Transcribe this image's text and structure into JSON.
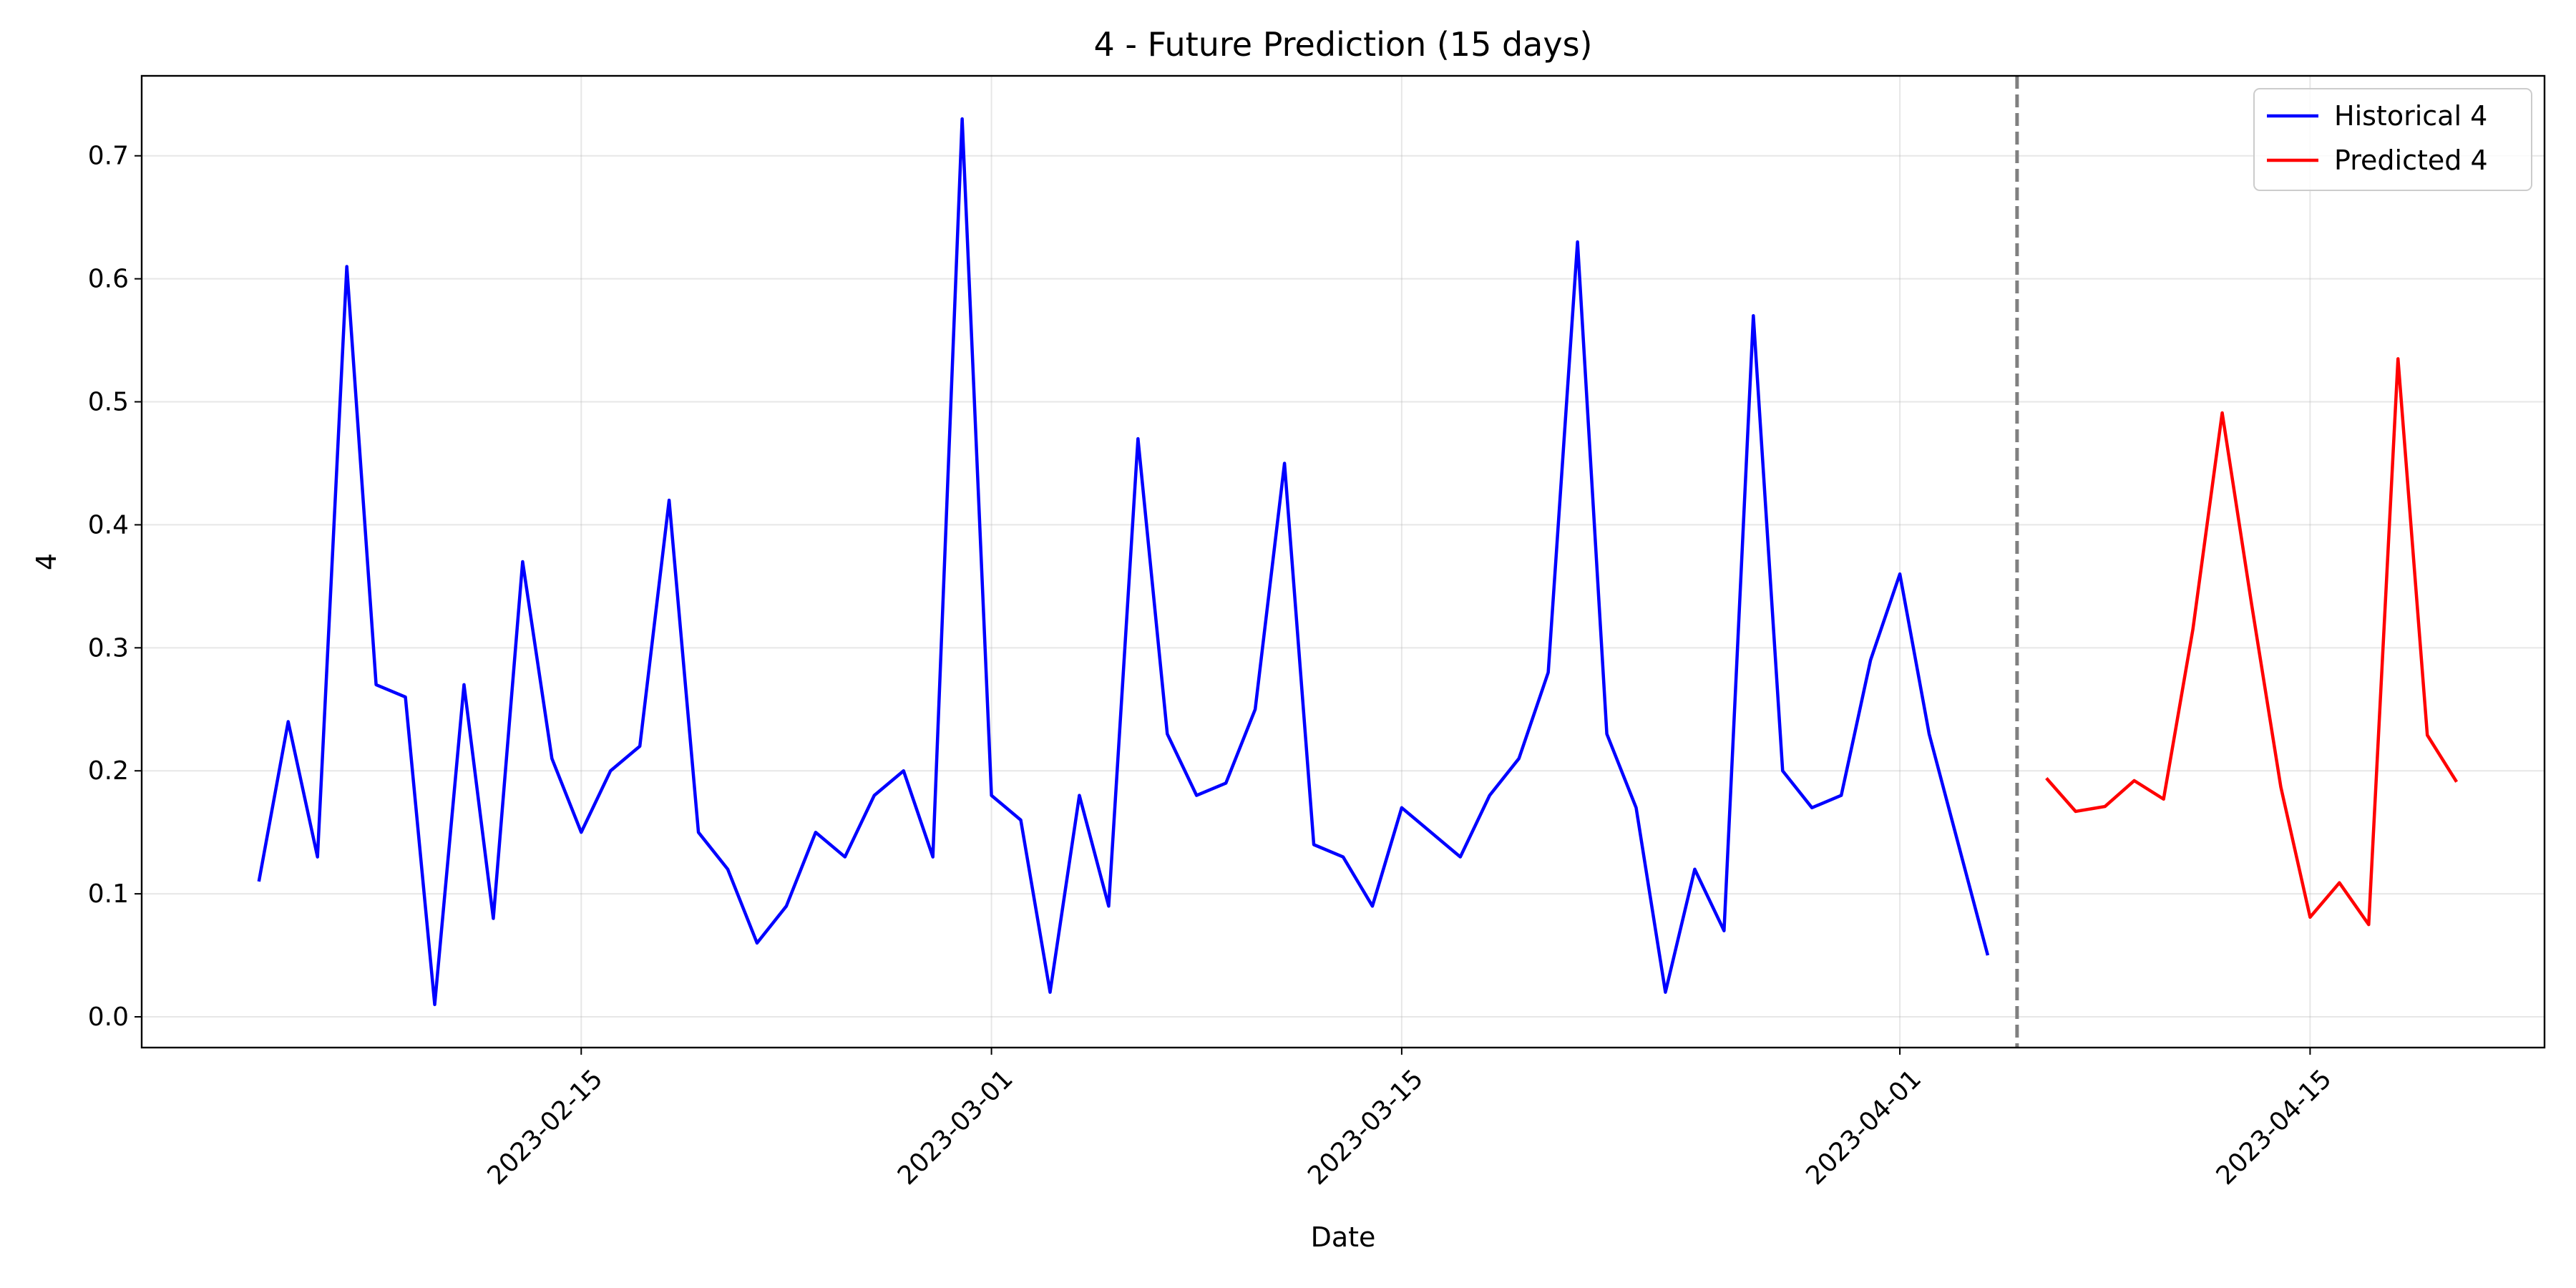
{
  "chart_data": {
    "type": "line",
    "title": "4 - Future Prediction (15 days)",
    "xlabel": "Date",
    "ylabel": "4",
    "grid": true,
    "legend_position": "top-right",
    "x_ticks": [
      "2023-02-15",
      "2023-03-01",
      "2023-03-15",
      "2023-04-01",
      "2023-04-15"
    ],
    "y_ticks": [
      "0.0",
      "0.1",
      "0.2",
      "0.3",
      "0.4",
      "0.5",
      "0.6",
      "0.7"
    ],
    "xlim": [
      "2023-01-31",
      "2023-04-23"
    ],
    "ylim": [
      -0.025,
      0.765
    ],
    "forecast_start": "2023-04-05",
    "series": [
      {
        "name": "Historical 4",
        "color": "#0000ff",
        "start_date": "2023-02-04",
        "values": [
          0.11,
          0.24,
          0.13,
          0.61,
          0.27,
          0.26,
          0.01,
          0.27,
          0.08,
          0.37,
          0.21,
          0.15,
          0.2,
          0.22,
          0.42,
          0.15,
          0.12,
          0.06,
          0.09,
          0.15,
          0.13,
          0.18,
          0.2,
          0.13,
          0.73,
          0.18,
          0.16,
          0.02,
          0.18,
          0.09,
          0.47,
          0.23,
          0.18,
          0.19,
          0.25,
          0.45,
          0.14,
          0.13,
          0.09,
          0.17,
          0.15,
          0.13,
          0.18,
          0.21,
          0.28,
          0.63,
          0.23,
          0.17,
          0.02,
          0.12,
          0.07,
          0.57,
          0.2,
          0.17,
          0.18,
          0.29,
          0.36,
          0.23,
          0.14,
          0.05
        ]
      },
      {
        "name": "Predicted 4",
        "color": "#ff0000",
        "start_date": "2023-04-06",
        "values": [
          0.194,
          0.167,
          0.171,
          0.192,
          0.177,
          0.315,
          0.491,
          0.336,
          0.187,
          0.081,
          0.109,
          0.075,
          0.535,
          0.229,
          0.191
        ]
      }
    ]
  }
}
